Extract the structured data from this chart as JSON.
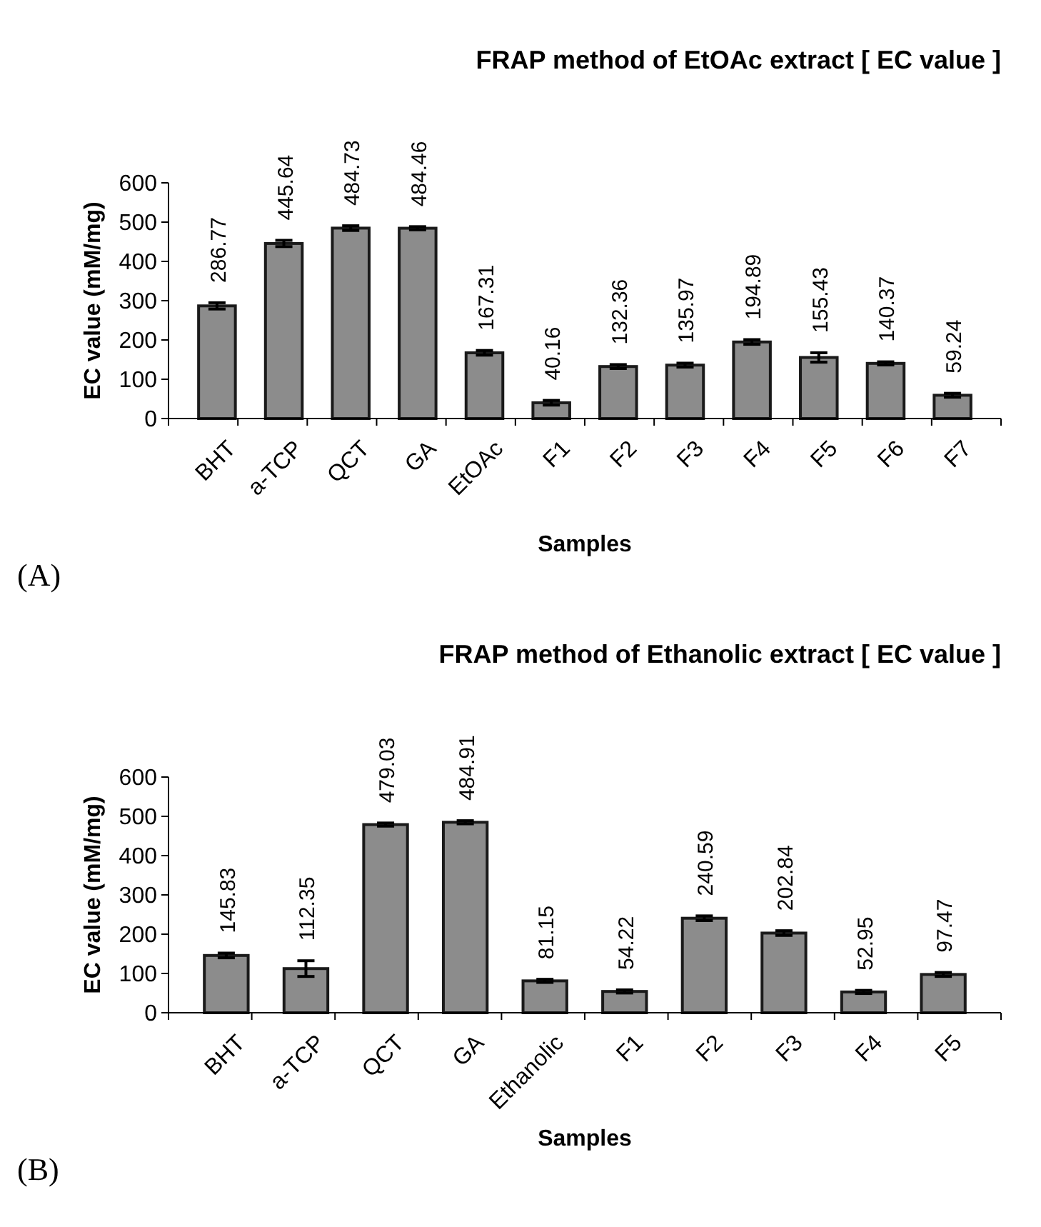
{
  "chart_data": [
    {
      "type": "bar",
      "title": "FRAP method of EtOAc extract [ EC value ]",
      "xlabel": "Samples",
      "ylabel": "EC value (mM/mg)",
      "categories": [
        "BHT",
        "a-TCP",
        "QCT",
        "GA",
        "EtOAc",
        "F1",
        "F2",
        "F3",
        "F4",
        "F5",
        "F6",
        "F7"
      ],
      "values": [
        286.77,
        445.64,
        484.73,
        484.46,
        167.31,
        40.16,
        132.36,
        135.97,
        194.89,
        155.43,
        140.37,
        59.24
      ],
      "errors": [
        8,
        8,
        6,
        4,
        6,
        6,
        5,
        5,
        6,
        12,
        4,
        5
      ],
      "color": "#8c8c8c",
      "ylim": [
        0,
        600
      ],
      "yticks": [
        0,
        100,
        200,
        300,
        400,
        500,
        600
      ],
      "data_labels": true,
      "annotations": [
        "(A)"
      ]
    },
    {
      "type": "bar",
      "title": "FRAP method of Ethanolic extract [ EC value ]",
      "xlabel": "Samples",
      "ylabel": "EC value (mM/mg)",
      "categories": [
        "BHT",
        "a-TCP",
        "QCT",
        "GA",
        "Ethanolic",
        "F1",
        "F2",
        "F3",
        "F4",
        "F5"
      ],
      "values": [
        145.83,
        112.35,
        479.03,
        484.91,
        81.15,
        54.22,
        240.59,
        202.84,
        52.95,
        97.47
      ],
      "errors": [
        6,
        20,
        4,
        4,
        4,
        4,
        6,
        6,
        4,
        5
      ],
      "color": "#8c8c8c",
      "ylim": [
        0,
        600
      ],
      "yticks": [
        0,
        100,
        200,
        300,
        400,
        500,
        600
      ],
      "data_labels": true,
      "annotations": [
        "(B)"
      ]
    }
  ]
}
